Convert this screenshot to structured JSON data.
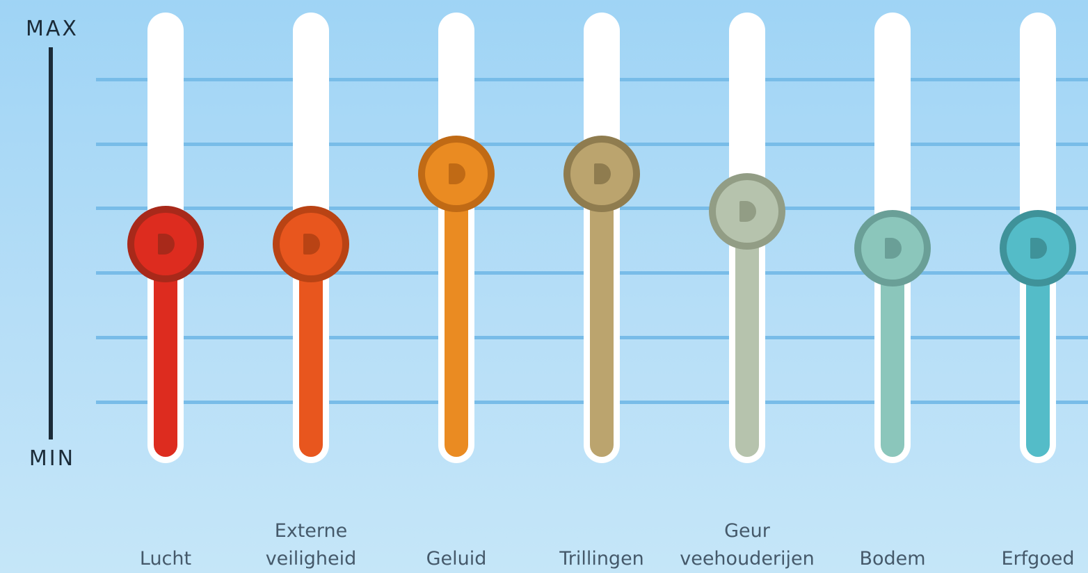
{
  "axis": {
    "max_label": "MAX",
    "min_label": "MIN"
  },
  "sliders": [
    {
      "label": "Lucht",
      "level": 0.47,
      "color": "#dd2c1f",
      "ring_color": "#a8291a",
      "icon": "d-icon"
    },
    {
      "label": "Externe\nveiligheid",
      "level": 0.47,
      "color": "#e8561e",
      "ring_color": "#b94314",
      "icon": "d-icon"
    },
    {
      "label": "Geluid",
      "level": 0.64,
      "color": "#ea8b22",
      "ring_color": "#c06a15",
      "icon": "d-icon"
    },
    {
      "label": "Trillingen",
      "level": 0.64,
      "color": "#bba46e",
      "ring_color": "#8f7c4f",
      "icon": "d-icon"
    },
    {
      "label": "Geur\nveehouderijen",
      "level": 0.55,
      "color": "#b6c3ad",
      "ring_color": "#929d85",
      "icon": "d-icon"
    },
    {
      "label": "Bodem",
      "level": 0.46,
      "color": "#8bc6bb",
      "ring_color": "#6a9f97",
      "icon": "d-icon"
    },
    {
      "label": "Erfgoed",
      "level": 0.46,
      "color": "#54bcc8",
      "ring_color": "#3f9299",
      "icon": "d-icon"
    }
  ]
}
